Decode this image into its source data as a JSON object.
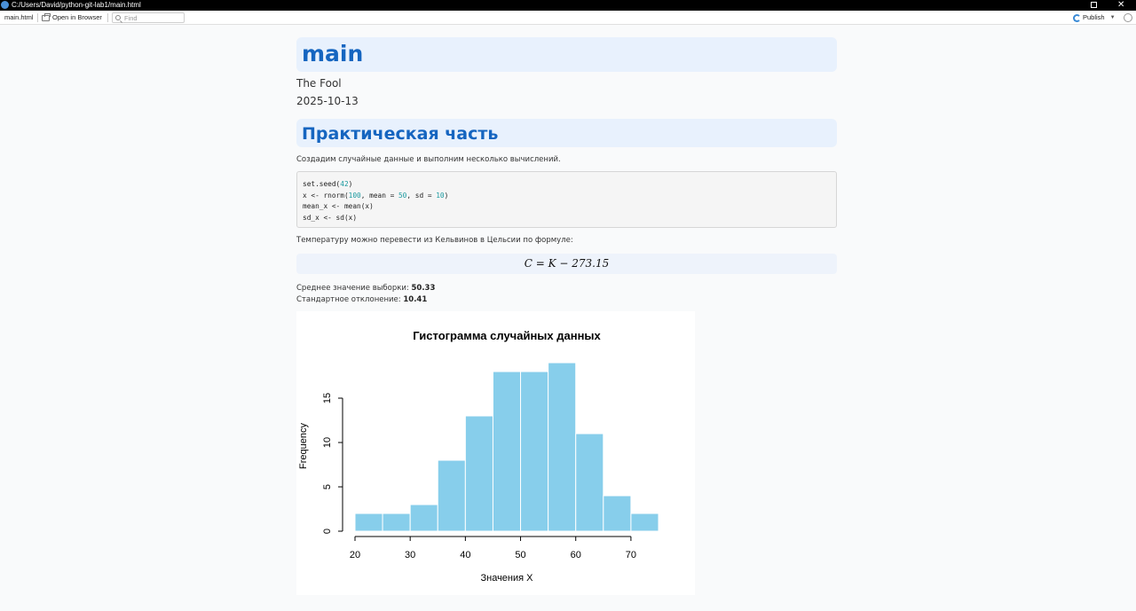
{
  "window": {
    "title": "C:/Users/David/python-git-lab1/main.html"
  },
  "toolbar": {
    "file_tab": "main.html",
    "open_browser": "Open in Browser",
    "find_placeholder": "Find",
    "publish": "Publish"
  },
  "doc": {
    "title": "main",
    "author": "The Fool",
    "date": "2025-10-13",
    "section": "Практическая часть",
    "intro": "Создадим случайные данные и выполним несколько вычислений.",
    "code": [
      [
        "set.seed(",
        "42",
        ")"
      ],
      [
        "x <- rnorm(",
        "100",
        ", mean = ",
        "50",
        ", sd = ",
        "10",
        ")"
      ],
      [
        "mean_x <- mean(x)"
      ],
      [
        "sd_x <- sd(x)"
      ]
    ],
    "formula_intro": "Температуру можно перевести из Кельвинов в Цельсии по формуле:",
    "formula": "C = K − 273.15",
    "mean_label": "Среднее значение выборки: ",
    "mean_value": "50.33",
    "sd_label": "Стандартное отклонение: ",
    "sd_value": "10.41"
  },
  "chart_data": {
    "type": "bar",
    "title": "Гистограмма случайных данных",
    "xlabel": "Значения X",
    "ylabel": "Frequency",
    "bin_edges": [
      20,
      25,
      30,
      35,
      40,
      45,
      50,
      55,
      60,
      65,
      70,
      75
    ],
    "values": [
      2,
      2,
      3,
      8,
      13,
      18,
      18,
      19,
      11,
      4,
      2
    ],
    "x_ticks": [
      20,
      30,
      40,
      50,
      60,
      70
    ],
    "y_ticks": [
      0,
      5,
      10,
      15
    ],
    "xlim": [
      20,
      75
    ],
    "ylim": [
      0,
      19
    ],
    "bar_color": "#87ceeb",
    "grid": false
  }
}
